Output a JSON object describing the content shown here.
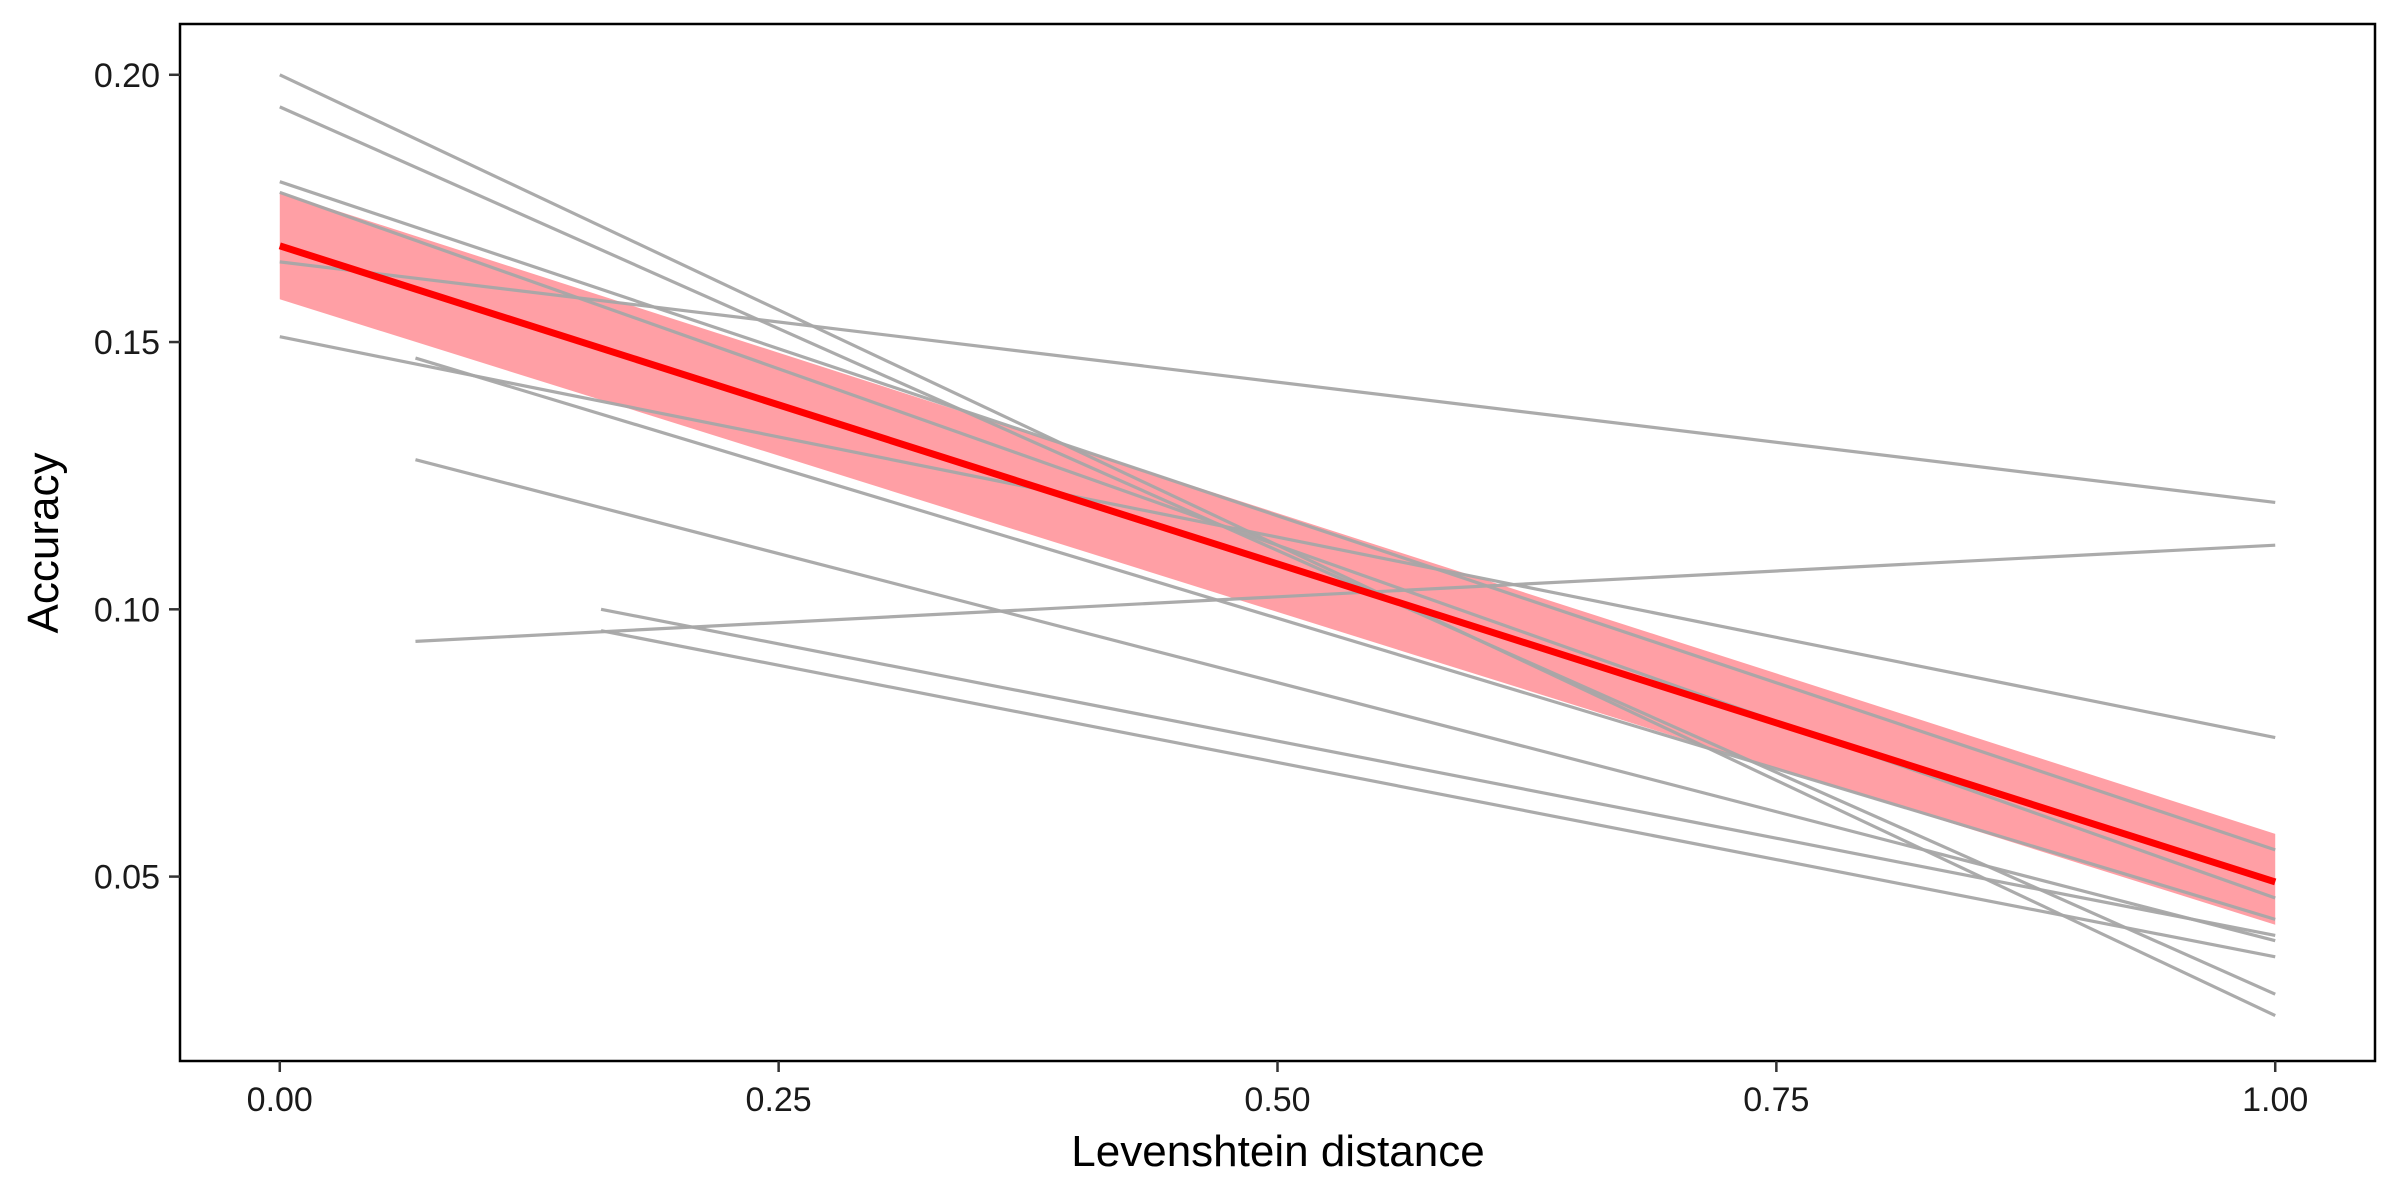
{
  "chart_data": {
    "type": "line",
    "title": "",
    "xlabel": "Levenshtein distance",
    "ylabel": "Accuracy",
    "xlim": [
      -0.05,
      1.05
    ],
    "ylim": [
      0.0155,
      0.2095
    ],
    "x_ticks": [
      0.0,
      0.25,
      0.5,
      0.75,
      1.0
    ],
    "x_tick_labels": [
      "0.00",
      "0.25",
      "0.50",
      "0.75",
      "1.00"
    ],
    "y_ticks": [
      0.05,
      0.1,
      0.15,
      0.2
    ],
    "y_tick_labels": [
      "0.05",
      "0.10",
      "0.15",
      "0.20"
    ],
    "grid": false,
    "legend": "none",
    "colors": {
      "individual": "#a6a6a6",
      "fit": "#ff0000",
      "ribbon": "#ff9aa0"
    },
    "individual_series": [
      {
        "x": [
          0.0,
          1.0
        ],
        "y": [
          0.2,
          0.024
        ]
      },
      {
        "x": [
          0.0,
          1.0
        ],
        "y": [
          0.194,
          0.028
        ]
      },
      {
        "x": [
          0.0,
          1.0
        ],
        "y": [
          0.18,
          0.055
        ]
      },
      {
        "x": [
          0.0,
          1.0
        ],
        "y": [
          0.178,
          0.046
        ]
      },
      {
        "x": [
          0.0,
          1.0
        ],
        "y": [
          0.165,
          0.12
        ]
      },
      {
        "x": [
          0.0,
          1.0
        ],
        "y": [
          0.151,
          0.076
        ]
      },
      {
        "x": [
          0.068,
          1.0
        ],
        "y": [
          0.147,
          0.042
        ]
      },
      {
        "x": [
          0.068,
          1.0
        ],
        "y": [
          0.128,
          0.038
        ]
      },
      {
        "x": [
          0.068,
          1.0
        ],
        "y": [
          0.094,
          0.112
        ]
      },
      {
        "x": [
          0.161,
          1.0
        ],
        "y": [
          0.1,
          0.039
        ]
      },
      {
        "x": [
          0.161,
          1.0
        ],
        "y": [
          0.096,
          0.035
        ]
      }
    ],
    "fit": {
      "x": [
        0.0,
        1.0
      ],
      "y": [
        0.168,
        0.049
      ],
      "ci_lower": [
        0.158,
        0.041
      ],
      "ci_upper": [
        0.178,
        0.058
      ]
    }
  }
}
